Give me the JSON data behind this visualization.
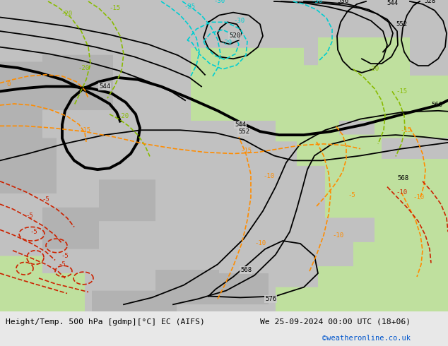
{
  "title_left": "Height/Temp. 500 hPa [gdmp][°C] EC (AIFS)",
  "title_right": "We 25-09-2024 00:00 UTC (18+06)",
  "credit": "©weatheronline.co.uk",
  "fig_bg": "#e8e8e8",
  "sea_color": [
    0.76,
    0.76,
    0.76
  ],
  "land_green_color": [
    0.75,
    0.88,
    0.62
  ],
  "land_gray_color": [
    0.7,
    0.7,
    0.7
  ],
  "black": "#000000",
  "orange": "#ff8c00",
  "cyan": "#00ced1",
  "red": "#cc2200",
  "green": "#88bb00",
  "thick_lw": 2.8,
  "thin_lw": 1.3,
  "temp_lw": 1.2
}
